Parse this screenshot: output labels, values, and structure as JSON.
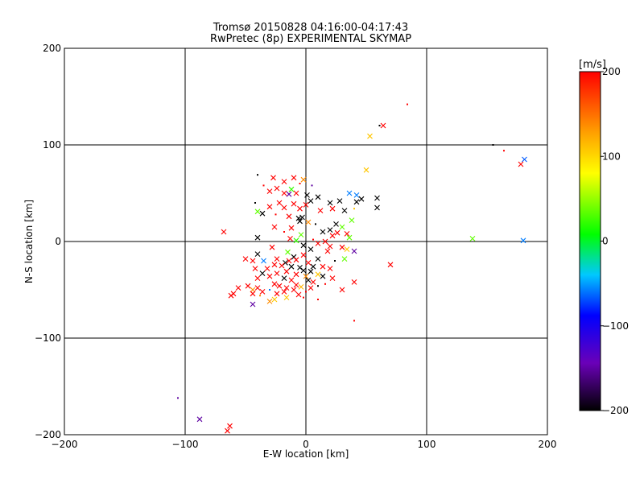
{
  "chart_data": {
    "type": "scatter",
    "title": "Tromsø 20150828 04:16:00-04:17:43",
    "subtitle": "RwPretec (8p) EXPERIMENTAL SKYMAP",
    "xlabel": "E-W location [km]",
    "ylabel": "N-S location [km]",
    "xlim": [
      -200,
      200
    ],
    "ylim": [
      -200,
      200
    ],
    "xticks": [
      -200,
      -100,
      0,
      100,
      200
    ],
    "yticks": [
      -200,
      -100,
      0,
      100,
      200
    ],
    "xtick_labels": [
      "−200",
      "−100",
      "0",
      "100",
      "200"
    ],
    "ytick_labels": [
      "−200",
      "−100",
      "0",
      "100",
      "200"
    ],
    "grid": true,
    "colorbar": {
      "label": "[m/s]",
      "range": [
        -200,
        200
      ],
      "ticks": [
        -200,
        -100,
        0,
        100,
        200
      ],
      "tick_labels": [
        "−200",
        "−100",
        "0",
        "100",
        "200"
      ],
      "colormap": [
        "#000000",
        "#6a00b8",
        "#0000ff",
        "#00c8ff",
        "#00ff00",
        "#ffff00",
        "#ffa000",
        "#ff0000"
      ]
    },
    "points": [
      {
        "x": 84,
        "y": 142,
        "v": 200,
        "m": "dot"
      },
      {
        "x": 61,
        "y": 120,
        "v": -200,
        "m": "dot"
      },
      {
        "x": 64,
        "y": 120,
        "v": 200,
        "m": "x"
      },
      {
        "x": 53,
        "y": 109,
        "v": 120,
        "m": "x"
      },
      {
        "x": 155,
        "y": 100,
        "v": -200,
        "m": "dot"
      },
      {
        "x": 164,
        "y": 94,
        "v": 200,
        "m": "dot"
      },
      {
        "x": 181,
        "y": 85,
        "v": -60,
        "m": "x"
      },
      {
        "x": 178,
        "y": 80,
        "v": 200,
        "m": "x"
      },
      {
        "x": 50,
        "y": 74,
        "v": 120,
        "m": "x"
      },
      {
        "x": 138,
        "y": 3,
        "v": 50,
        "m": "x"
      },
      {
        "x": 180,
        "y": 1,
        "v": -50,
        "m": "x"
      },
      {
        "x": -68,
        "y": 10,
        "v": 200,
        "m": "x"
      },
      {
        "x": 70,
        "y": -24,
        "v": 200,
        "m": "x"
      },
      {
        "x": 40,
        "y": -82,
        "v": 200,
        "m": "dot"
      },
      {
        "x": -106,
        "y": -162,
        "v": -150,
        "m": "dot"
      },
      {
        "x": -88,
        "y": -184,
        "v": -150,
        "m": "x"
      },
      {
        "x": -63,
        "y": -191,
        "v": 200,
        "m": "x"
      },
      {
        "x": -65,
        "y": -196,
        "v": 200,
        "m": "x"
      },
      {
        "x": -40,
        "y": 69,
        "v": -200,
        "m": "dot"
      },
      {
        "x": -27,
        "y": 66,
        "v": 200,
        "m": "x"
      },
      {
        "x": -10,
        "y": 66,
        "v": 200,
        "m": "x"
      },
      {
        "x": -2,
        "y": 64,
        "v": 150,
        "m": "x"
      },
      {
        "x": -18,
        "y": 62,
        "v": 200,
        "m": "x"
      },
      {
        "x": -5,
        "y": 60,
        "v": 200,
        "m": "dot"
      },
      {
        "x": 5,
        "y": 58,
        "v": -150,
        "m": "dot"
      },
      {
        "x": -35,
        "y": 58,
        "v": 200,
        "m": "dot"
      },
      {
        "x": -24,
        "y": 55,
        "v": 200,
        "m": "x"
      },
      {
        "x": -12,
        "y": 54,
        "v": 40,
        "m": "x"
      },
      {
        "x": -30,
        "y": 52,
        "v": 200,
        "m": "x"
      },
      {
        "x": -8,
        "y": 50,
        "v": 200,
        "m": "x"
      },
      {
        "x": -18,
        "y": 50,
        "v": 200,
        "m": "x"
      },
      {
        "x": -14,
        "y": 49,
        "v": -150,
        "m": "x"
      },
      {
        "x": 1,
        "y": 48,
        "v": -200,
        "m": "x"
      },
      {
        "x": 10,
        "y": 46,
        "v": -200,
        "m": "x"
      },
      {
        "x": 36,
        "y": 50,
        "v": -50,
        "m": "x"
      },
      {
        "x": 59,
        "y": 45,
        "v": -200,
        "m": "x"
      },
      {
        "x": 42,
        "y": 48,
        "v": -50,
        "m": "x"
      },
      {
        "x": 46,
        "y": 44,
        "v": -200,
        "m": "x"
      },
      {
        "x": 28,
        "y": 42,
        "v": -200,
        "m": "x"
      },
      {
        "x": 4,
        "y": 42,
        "v": -200,
        "m": "x"
      },
      {
        "x": -22,
        "y": 40,
        "v": 200,
        "m": "x"
      },
      {
        "x": 42,
        "y": 41,
        "v": -200,
        "m": "x"
      },
      {
        "x": 20,
        "y": 40,
        "v": -200,
        "m": "x"
      },
      {
        "x": -42,
        "y": 40,
        "v": -200,
        "m": "dot"
      },
      {
        "x": -10,
        "y": 39,
        "v": 200,
        "m": "x"
      },
      {
        "x": 0,
        "y": 38,
        "v": 200,
        "m": "x"
      },
      {
        "x": 59,
        "y": 35,
        "v": -200,
        "m": "x"
      },
      {
        "x": -30,
        "y": 36,
        "v": 200,
        "m": "x"
      },
      {
        "x": -18,
        "y": 35,
        "v": 200,
        "m": "x"
      },
      {
        "x": -5,
        "y": 34,
        "v": 200,
        "m": "x"
      },
      {
        "x": 22,
        "y": 34,
        "v": 200,
        "m": "x"
      },
      {
        "x": 40,
        "y": 34,
        "v": 120,
        "m": "dot"
      },
      {
        "x": 12,
        "y": 32,
        "v": 200,
        "m": "x"
      },
      {
        "x": 32,
        "y": 32,
        "v": -200,
        "m": "x"
      },
      {
        "x": -40,
        "y": 31,
        "v": 50,
        "m": "x"
      },
      {
        "x": -36,
        "y": 29,
        "v": -200,
        "m": "x"
      },
      {
        "x": -25,
        "y": 28,
        "v": 200,
        "m": "dot"
      },
      {
        "x": -14,
        "y": 26,
        "v": 200,
        "m": "x"
      },
      {
        "x": -6,
        "y": 24,
        "v": -200,
        "m": "x"
      },
      {
        "x": -5,
        "y": 21,
        "v": -200,
        "m": "x"
      },
      {
        "x": -3,
        "y": 25,
        "v": -200,
        "m": "x"
      },
      {
        "x": 2,
        "y": 20,
        "v": 150,
        "m": "x"
      },
      {
        "x": 8,
        "y": 18,
        "v": -200,
        "m": "dot"
      },
      {
        "x": 25,
        "y": 18,
        "v": -200,
        "m": "x"
      },
      {
        "x": 30,
        "y": 15,
        "v": 50,
        "m": "x"
      },
      {
        "x": 38,
        "y": 22,
        "v": 50,
        "m": "x"
      },
      {
        "x": -26,
        "y": 15,
        "v": 200,
        "m": "x"
      },
      {
        "x": -12,
        "y": 14,
        "v": 200,
        "m": "x"
      },
      {
        "x": 20,
        "y": 12,
        "v": -200,
        "m": "x"
      },
      {
        "x": 14,
        "y": 10,
        "v": -200,
        "m": "x"
      },
      {
        "x": -18,
        "y": 10,
        "v": 200,
        "m": "dot"
      },
      {
        "x": 26,
        "y": 9,
        "v": 200,
        "m": "x"
      },
      {
        "x": 34,
        "y": 8,
        "v": 200,
        "m": "x"
      },
      {
        "x": -4,
        "y": 7,
        "v": 50,
        "m": "x"
      },
      {
        "x": 22,
        "y": 6,
        "v": 200,
        "m": "x"
      },
      {
        "x": 36,
        "y": 4,
        "v": 50,
        "m": "x"
      },
      {
        "x": 6,
        "y": 2,
        "v": 200,
        "m": "dot"
      },
      {
        "x": -40,
        "y": 4,
        "v": -200,
        "m": "x"
      },
      {
        "x": -13,
        "y": 3,
        "v": 200,
        "m": "x"
      },
      {
        "x": -8,
        "y": 1,
        "v": 40,
        "m": "x"
      },
      {
        "x": 16,
        "y": 0,
        "v": 200,
        "m": "x"
      },
      {
        "x": 10,
        "y": -2,
        "v": 200,
        "m": "x"
      },
      {
        "x": -2,
        "y": -4,
        "v": -200,
        "m": "x"
      },
      {
        "x": 20,
        "y": -5,
        "v": 200,
        "m": "x"
      },
      {
        "x": 30,
        "y": -6,
        "v": 200,
        "m": "x"
      },
      {
        "x": -28,
        "y": -6,
        "v": 200,
        "m": "x"
      },
      {
        "x": 40,
        "y": -10,
        "v": -150,
        "m": "x"
      },
      {
        "x": 18,
        "y": -10,
        "v": 200,
        "m": "x"
      },
      {
        "x": 34,
        "y": -8,
        "v": 120,
        "m": "x"
      },
      {
        "x": 4,
        "y": -8,
        "v": -200,
        "m": "x"
      },
      {
        "x": -15,
        "y": -11,
        "v": 50,
        "m": "x"
      },
      {
        "x": -40,
        "y": -13,
        "v": -200,
        "m": "x"
      },
      {
        "x": 32,
        "y": -18,
        "v": 50,
        "m": "x"
      },
      {
        "x": -2,
        "y": -14,
        "v": 200,
        "m": "x"
      },
      {
        "x": -10,
        "y": -16,
        "v": -200,
        "m": "x"
      },
      {
        "x": -50,
        "y": -18,
        "v": 200,
        "m": "x"
      },
      {
        "x": -44,
        "y": -20,
        "v": 200,
        "m": "x"
      },
      {
        "x": -35,
        "y": -20,
        "v": -50,
        "m": "x"
      },
      {
        "x": -24,
        "y": -18,
        "v": 200,
        "m": "x"
      },
      {
        "x": -14,
        "y": -20,
        "v": 200,
        "m": "x"
      },
      {
        "x": -8,
        "y": -19,
        "v": 200,
        "m": "x"
      },
      {
        "x": 10,
        "y": -18,
        "v": -200,
        "m": "x"
      },
      {
        "x": 24,
        "y": -20,
        "v": -200,
        "m": "dot"
      },
      {
        "x": -17,
        "y": -22,
        "v": -200,
        "m": "x"
      },
      {
        "x": 2,
        "y": -22,
        "v": 200,
        "m": "x"
      },
      {
        "x": -26,
        "y": -24,
        "v": 200,
        "m": "x"
      },
      {
        "x": -20,
        "y": -25,
        "v": 200,
        "m": "x"
      },
      {
        "x": -12,
        "y": -26,
        "v": -200,
        "m": "x"
      },
      {
        "x": -5,
        "y": -27,
        "v": -200,
        "m": "x"
      },
      {
        "x": 6,
        "y": -26,
        "v": -200,
        "m": "x"
      },
      {
        "x": 14,
        "y": -26,
        "v": 200,
        "m": "x"
      },
      {
        "x": -42,
        "y": -28,
        "v": 200,
        "m": "x"
      },
      {
        "x": -32,
        "y": -28,
        "v": 200,
        "m": "x"
      },
      {
        "x": 20,
        "y": -28,
        "v": 200,
        "m": "x"
      },
      {
        "x": -2,
        "y": -30,
        "v": -200,
        "m": "x"
      },
      {
        "x": 4,
        "y": -31,
        "v": -200,
        "m": "x"
      },
      {
        "x": -16,
        "y": -31,
        "v": 200,
        "m": "x"
      },
      {
        "x": -24,
        "y": -33,
        "v": 200,
        "m": "x"
      },
      {
        "x": -36,
        "y": -33,
        "v": -200,
        "m": "x"
      },
      {
        "x": 10,
        "y": -34,
        "v": 120,
        "m": "x"
      },
      {
        "x": -8,
        "y": -34,
        "v": 200,
        "m": "x"
      },
      {
        "x": -30,
        "y": -36,
        "v": 200,
        "m": "x"
      },
      {
        "x": 0,
        "y": -36,
        "v": 150,
        "m": "x"
      },
      {
        "x": 14,
        "y": -36,
        "v": -200,
        "m": "x"
      },
      {
        "x": -18,
        "y": -38,
        "v": -200,
        "m": "x"
      },
      {
        "x": -40,
        "y": -38,
        "v": 200,
        "m": "x"
      },
      {
        "x": 22,
        "y": -38,
        "v": 200,
        "m": "x"
      },
      {
        "x": -12,
        "y": -40,
        "v": 200,
        "m": "x"
      },
      {
        "x": 2,
        "y": -40,
        "v": -200,
        "m": "x"
      },
      {
        "x": 6,
        "y": -42,
        "v": 200,
        "m": "x"
      },
      {
        "x": 40,
        "y": -42,
        "v": 200,
        "m": "x"
      },
      {
        "x": 16,
        "y": -44,
        "v": 200,
        "m": "dot"
      },
      {
        "x": -26,
        "y": -44,
        "v": 200,
        "m": "x"
      },
      {
        "x": -8,
        "y": -45,
        "v": 200,
        "m": "x"
      },
      {
        "x": -48,
        "y": -46,
        "v": 200,
        "m": "x"
      },
      {
        "x": -22,
        "y": -46,
        "v": 200,
        "m": "x"
      },
      {
        "x": -4,
        "y": -47,
        "v": 130,
        "m": "x"
      },
      {
        "x": 10,
        "y": -46,
        "v": -200,
        "m": "dot"
      },
      {
        "x": -40,
        "y": -48,
        "v": 200,
        "m": "x"
      },
      {
        "x": -56,
        "y": -48,
        "v": 200,
        "m": "x"
      },
      {
        "x": -16,
        "y": -48,
        "v": 200,
        "m": "x"
      },
      {
        "x": 4,
        "y": -48,
        "v": 200,
        "m": "x"
      },
      {
        "x": -44,
        "y": -50,
        "v": 150,
        "m": "x"
      },
      {
        "x": -30,
        "y": -50,
        "v": -50,
        "m": "dot"
      },
      {
        "x": -10,
        "y": -50,
        "v": 200,
        "m": "x"
      },
      {
        "x": 30,
        "y": -50,
        "v": 200,
        "m": "x"
      },
      {
        "x": -36,
        "y": -52,
        "v": 200,
        "m": "x"
      },
      {
        "x": -24,
        "y": -54,
        "v": 200,
        "m": "x"
      },
      {
        "x": -18,
        "y": -52,
        "v": 200,
        "m": "x"
      },
      {
        "x": 0,
        "y": -52,
        "v": 200,
        "m": "dot"
      },
      {
        "x": -60,
        "y": -54,
        "v": 200,
        "m": "x"
      },
      {
        "x": -44,
        "y": -54,
        "v": 200,
        "m": "x"
      },
      {
        "x": -6,
        "y": -55,
        "v": 200,
        "m": "x"
      },
      {
        "x": -62,
        "y": -56,
        "v": 200,
        "m": "x"
      },
      {
        "x": -38,
        "y": -56,
        "v": 150,
        "m": "dot"
      },
      {
        "x": -16,
        "y": -58,
        "v": 120,
        "m": "x"
      },
      {
        "x": -26,
        "y": -60,
        "v": 120,
        "m": "x"
      },
      {
        "x": -30,
        "y": -62,
        "v": 150,
        "m": "x"
      },
      {
        "x": -44,
        "y": -65,
        "v": -150,
        "m": "x"
      },
      {
        "x": 10,
        "y": -60,
        "v": 200,
        "m": "dot"
      },
      {
        "x": -2,
        "y": -58,
        "v": 200,
        "m": "dot"
      }
    ]
  }
}
